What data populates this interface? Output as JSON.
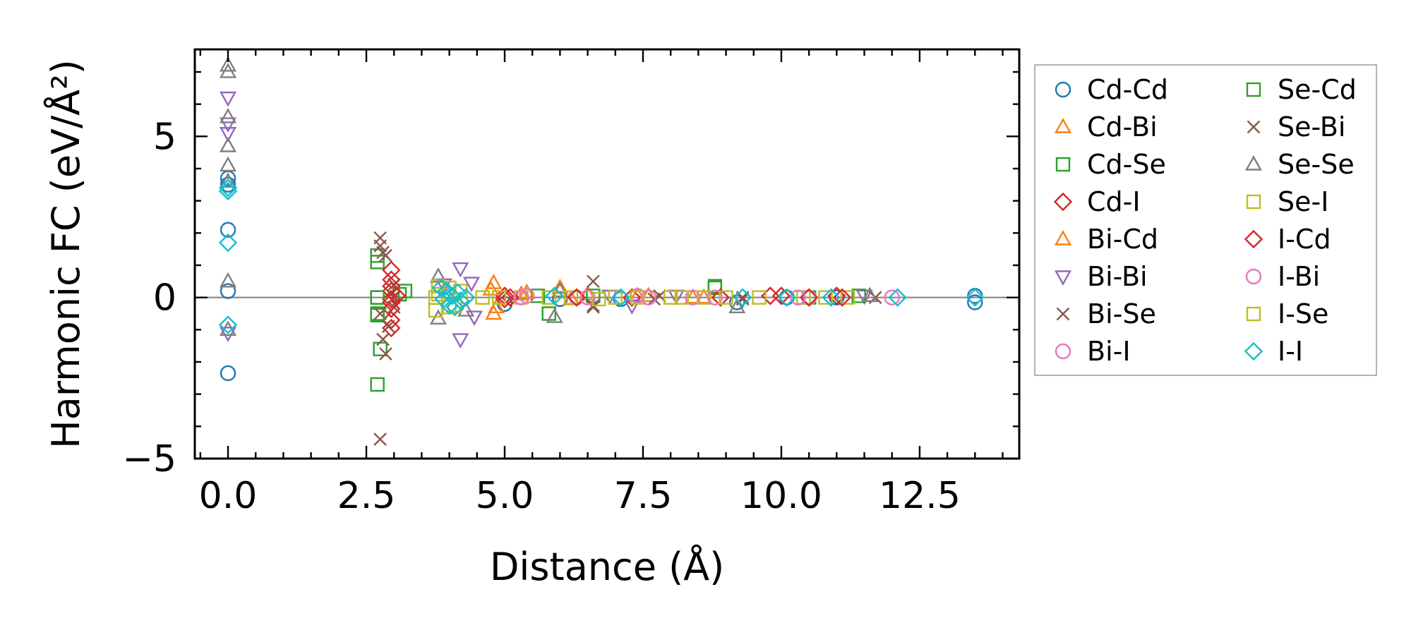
{
  "chart_data": {
    "type": "scatter",
    "title": "",
    "xlabel": "Distance (Å)",
    "ylabel": "Harmonic FC (eV/Å²)",
    "xlim": [
      -0.6,
      14.3
    ],
    "ylim": [
      -5.0,
      7.7
    ],
    "x_ticks": [
      0.0,
      2.5,
      5.0,
      7.5,
      10.0,
      12.5
    ],
    "x_tick_labels": [
      "0.0",
      "2.5",
      "5.0",
      "7.5",
      "10.0",
      "12.5"
    ],
    "y_ticks": [
      -5,
      0,
      5
    ],
    "y_tick_labels": [
      "−5",
      "0",
      "5"
    ],
    "legend_position": "outside-right",
    "zero_line": true,
    "series": [
      {
        "name": "Cd-Cd",
        "marker": "circle",
        "color": "#1f77b4",
        "points": [
          [
            0,
            3.7
          ],
          [
            0,
            3.5
          ],
          [
            0,
            2.1
          ],
          [
            0,
            0.2
          ],
          [
            0,
            -2.35
          ],
          [
            5.0,
            -0.2
          ],
          [
            6.0,
            -0.05
          ],
          [
            7.1,
            -0.05
          ],
          [
            9.2,
            -0.15
          ],
          [
            10.1,
            0.0
          ],
          [
            11.0,
            0.0
          ],
          [
            13.5,
            -0.15
          ],
          [
            13.5,
            0.05
          ]
        ]
      },
      {
        "name": "Cd-Bi",
        "marker": "triangle-up",
        "color": "#ff7f0e",
        "points": [
          [
            4.8,
            0.45
          ],
          [
            4.8,
            -0.5
          ],
          [
            5.3,
            0.1
          ],
          [
            6.0,
            0.3
          ],
          [
            6.5,
            0.1
          ],
          [
            7.6,
            0.05
          ],
          [
            8.4,
            0.0
          ]
        ]
      },
      {
        "name": "Cd-Se",
        "marker": "square",
        "color": "#2ca02c",
        "points": [
          [
            2.7,
            1.3
          ],
          [
            2.7,
            1.1
          ],
          [
            2.7,
            -0.55
          ],
          [
            2.7,
            0.0
          ],
          [
            2.75,
            -1.6
          ],
          [
            2.7,
            -2.7
          ],
          [
            3.1,
            0.1
          ],
          [
            5.6,
            0.05
          ],
          [
            6.6,
            0.05
          ],
          [
            8.8,
            0.35
          ],
          [
            10.5,
            0.0
          ]
        ]
      },
      {
        "name": "Cd-I",
        "marker": "diamond",
        "color": "#d62728",
        "points": [
          [
            2.95,
            0.85
          ],
          [
            2.95,
            0.55
          ],
          [
            2.95,
            0.2
          ],
          [
            2.95,
            -0.05
          ],
          [
            2.95,
            -0.35
          ],
          [
            2.95,
            -0.7
          ],
          [
            2.95,
            -0.95
          ],
          [
            5.0,
            0.05
          ],
          [
            5.1,
            0.0
          ],
          [
            7.3,
            0.0
          ],
          [
            9.8,
            0.05
          ],
          [
            11.0,
            0.05
          ]
        ]
      },
      {
        "name": "Bi-Cd",
        "marker": "triangle-up",
        "color": "#ff7f0e",
        "points": [
          [
            4.75,
            0.25
          ],
          [
            4.85,
            -0.3
          ],
          [
            5.4,
            0.15
          ],
          [
            6.2,
            -0.05
          ],
          [
            7.4,
            0.05
          ],
          [
            8.6,
            0.0
          ]
        ]
      },
      {
        "name": "Bi-Bi",
        "marker": "triangle-down",
        "color": "#9467bd",
        "points": [
          [
            0,
            6.2
          ],
          [
            0,
            5.4
          ],
          [
            0,
            5.1
          ],
          [
            0,
            -1.1
          ],
          [
            3.9,
            0.4
          ],
          [
            4.2,
            0.9
          ],
          [
            4.2,
            -1.3
          ],
          [
            4.4,
            0.45
          ],
          [
            4.45,
            -0.6
          ],
          [
            6.9,
            0.05
          ],
          [
            7.3,
            -0.25
          ],
          [
            8.1,
            0.05
          ],
          [
            11.5,
            0.05
          ]
        ]
      },
      {
        "name": "Bi-Se",
        "marker": "x",
        "color": "#8c564b",
        "points": [
          [
            2.75,
            1.85
          ],
          [
            2.75,
            1.6
          ],
          [
            2.85,
            1.3
          ],
          [
            2.75,
            -0.5
          ],
          [
            2.8,
            -1.3
          ],
          [
            2.85,
            -1.75
          ],
          [
            2.75,
            -4.4
          ],
          [
            3.0,
            0.4
          ],
          [
            3.0,
            -0.3
          ],
          [
            6.6,
            0.5
          ],
          [
            6.6,
            -0.3
          ],
          [
            7.8,
            0.05
          ],
          [
            9.3,
            -0.05
          ],
          [
            11.7,
            0.0
          ]
        ]
      },
      {
        "name": "Bi-I",
        "marker": "circle",
        "color": "#e377c2",
        "points": [
          [
            5.4,
            0.05
          ],
          [
            6.3,
            0.0
          ],
          [
            7.4,
            0.05
          ],
          [
            8.4,
            0.0
          ],
          [
            10.5,
            0.0
          ],
          [
            12.0,
            0.0
          ]
        ]
      },
      {
        "name": "Se-Cd",
        "marker": "square",
        "color": "#2ca02c",
        "points": [
          [
            2.7,
            0.0
          ],
          [
            2.7,
            -0.5
          ],
          [
            3.2,
            0.2
          ],
          [
            5.8,
            -0.5
          ],
          [
            8.8,
            0.3
          ],
          [
            11.4,
            0.05
          ]
        ]
      },
      {
        "name": "Se-Bi",
        "marker": "x",
        "color": "#8c564b",
        "points": [
          [
            2.8,
            1.4
          ],
          [
            2.9,
            -0.9
          ],
          [
            3.0,
            0.0
          ],
          [
            6.6,
            -0.25
          ],
          [
            7.7,
            -0.05
          ],
          [
            9.3,
            0.0
          ]
        ]
      },
      {
        "name": "Se-Se",
        "marker": "triangle-up",
        "color": "#7f7f7f",
        "points": [
          [
            0,
            7.2
          ],
          [
            0,
            7.0
          ],
          [
            0,
            5.6
          ],
          [
            0,
            4.7
          ],
          [
            0,
            4.1
          ],
          [
            0,
            3.6
          ],
          [
            0,
            0.5
          ],
          [
            0,
            -1.0
          ],
          [
            3.8,
            0.65
          ],
          [
            3.8,
            -0.65
          ],
          [
            4.3,
            -0.4
          ],
          [
            5.9,
            -0.6
          ],
          [
            6.0,
            0.2
          ],
          [
            9.2,
            -0.3
          ],
          [
            11.6,
            0.05
          ]
        ]
      },
      {
        "name": "Se-I",
        "marker": "square",
        "color": "#bcbd22",
        "points": [
          [
            3.75,
            0.0
          ],
          [
            3.75,
            -0.4
          ],
          [
            3.8,
            0.35
          ],
          [
            4.0,
            0.3
          ],
          [
            4.1,
            -0.25
          ],
          [
            4.6,
            0.0
          ],
          [
            5.3,
            0.0
          ],
          [
            6.2,
            0.0
          ],
          [
            6.7,
            -0.05
          ],
          [
            7.4,
            0.0
          ],
          [
            8.0,
            0.0
          ],
          [
            8.6,
            0.0
          ],
          [
            9.6,
            0.0
          ],
          [
            10.4,
            0.0
          ],
          [
            11.2,
            0.0
          ]
        ]
      },
      {
        "name": "I-Cd",
        "marker": "diamond",
        "color": "#d62728",
        "points": [
          [
            2.95,
            0.35
          ],
          [
            2.95,
            -0.15
          ],
          [
            3.05,
            0.05
          ],
          [
            5.0,
            -0.05
          ],
          [
            6.3,
            0.0
          ],
          [
            8.9,
            0.0
          ],
          [
            10.0,
            0.05
          ],
          [
            10.5,
            0.0
          ],
          [
            11.1,
            0.0
          ]
        ]
      },
      {
        "name": "I-Bi",
        "marker": "circle",
        "color": "#e377c2",
        "points": [
          [
            5.3,
            0.0
          ],
          [
            6.5,
            0.0
          ],
          [
            7.6,
            0.0
          ],
          [
            8.8,
            0.0
          ],
          [
            10.3,
            0.0
          ]
        ]
      },
      {
        "name": "I-Se",
        "marker": "square",
        "color": "#bcbd22",
        "points": [
          [
            3.8,
            0.1
          ],
          [
            4.0,
            -0.3
          ],
          [
            4.2,
            0.2
          ],
          [
            4.9,
            0.0
          ],
          [
            5.8,
            0.0
          ],
          [
            7.0,
            0.0
          ],
          [
            8.2,
            0.0
          ],
          [
            9.0,
            0.0
          ],
          [
            10.8,
            0.0
          ]
        ]
      },
      {
        "name": "I-I",
        "marker": "diamond",
        "color": "#17becf",
        "points": [
          [
            0,
            3.4
          ],
          [
            0,
            3.3
          ],
          [
            0,
            1.7
          ],
          [
            0,
            -0.85
          ],
          [
            3.85,
            0.3
          ],
          [
            3.9,
            -0.05
          ],
          [
            3.95,
            0.2
          ],
          [
            4.0,
            -0.25
          ],
          [
            4.05,
            0.05
          ],
          [
            4.1,
            -0.3
          ],
          [
            4.15,
            0.15
          ],
          [
            4.2,
            -0.1
          ],
          [
            4.3,
            0.0
          ],
          [
            5.9,
            0.05
          ],
          [
            7.1,
            0.0
          ],
          [
            9.3,
            0.0
          ],
          [
            10.1,
            0.0
          ],
          [
            10.9,
            0.0
          ],
          [
            12.1,
            0.0
          ],
          [
            13.5,
            0.0
          ]
        ]
      }
    ]
  }
}
